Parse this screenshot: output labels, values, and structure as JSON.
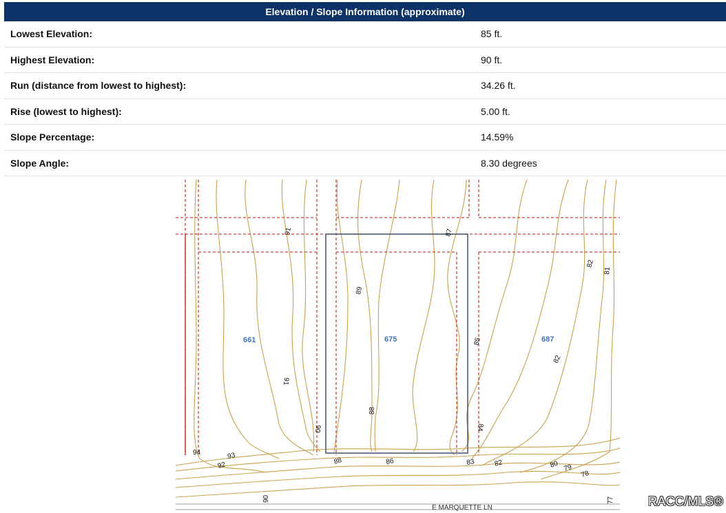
{
  "header": {
    "title": "Elevation / Slope Information (approximate)"
  },
  "rows": [
    {
      "label": "Lowest Elevation:",
      "value": "85 ft."
    },
    {
      "label": "Highest Elevation:",
      "value": "90 ft."
    },
    {
      "label": "Run (distance from lowest to highest):",
      "value": "34.26 ft."
    },
    {
      "label": "Rise (lowest to highest):",
      "value": "5.00 ft."
    },
    {
      "label": "Slope Percentage:",
      "value": "14.59%"
    },
    {
      "label": "Slope Angle:",
      "value": "8.30 degrees"
    }
  ],
  "map": {
    "parcels": [
      "661",
      "675",
      "687"
    ],
    "road": "E MARQUETTE LN",
    "contour_labels": [
      "91",
      "87",
      "89",
      "82",
      "81",
      "82",
      "91",
      "85",
      "88",
      "90",
      "84",
      "94",
      "93",
      "92",
      "88",
      "86",
      "83",
      "82",
      "80",
      "79",
      "78",
      "90",
      "77"
    ],
    "colors": {
      "contour": "#c8a24a",
      "parcel_line": "#d4423a",
      "lot_outline": "#4c5c7a",
      "parcel_number": "#3f76c0"
    }
  },
  "watermark": "RACC/MLS®"
}
